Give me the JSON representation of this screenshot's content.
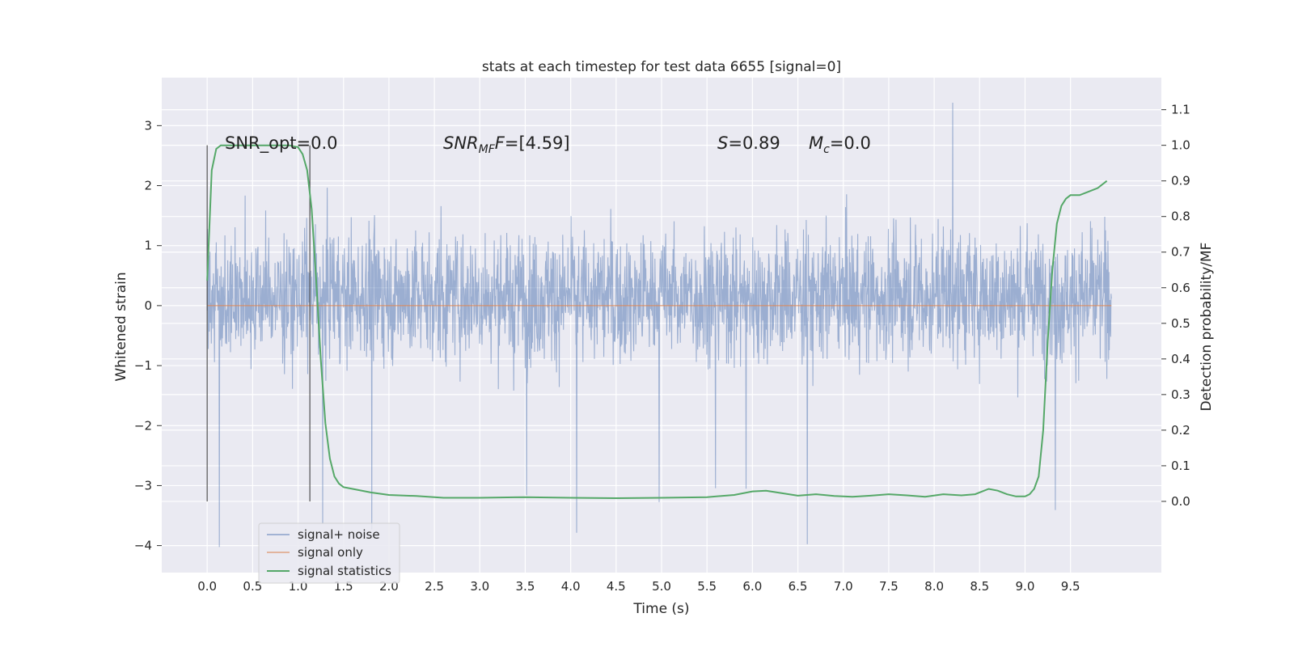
{
  "chart_data": {
    "type": "line",
    "title": "stats at each timestep for test data 6655 [signal=0]",
    "xlabel": "Time (s)",
    "ylabel_left": "Whitened strain",
    "ylabel_right": "Detection probability/MF",
    "x_range": [
      0.0,
      9.95
    ],
    "x_ticks": [
      "0.0",
      "0.5",
      "1.0",
      "1.5",
      "2.0",
      "2.5",
      "3.0",
      "3.5",
      "4.0",
      "4.5",
      "5.0",
      "5.5",
      "6.0",
      "6.5",
      "7.0",
      "7.5",
      "8.0",
      "8.5",
      "9.0",
      "9.5"
    ],
    "xlim": [
      -0.5,
      10.5
    ],
    "ylim_left": [
      -4.45,
      3.8
    ],
    "ylim_right": [
      -0.2,
      1.19
    ],
    "y_ticks_left": [
      "3",
      "2",
      "1",
      "0",
      "−1",
      "−2",
      "−3",
      "−4"
    ],
    "y_ticks_right": [
      "1.1",
      "1.0",
      "0.9",
      "0.8",
      "0.7",
      "0.6",
      "0.5",
      "0.4",
      "0.3",
      "0.2",
      "0.1",
      "0.0"
    ],
    "grid": true,
    "legend_position": "lower-left",
    "background": "#eaeaf2",
    "series": [
      {
        "name": "signal+ noise",
        "color": "#4c72b0",
        "opacity": 0.5,
        "envelope": {
          "typical_band": [
            -1.5,
            1.9
          ],
          "max_peak": 3.45,
          "min_peak": -4.05
        }
      },
      {
        "name": "signal only",
        "color": "#dd8452",
        "values_constant": 0.0
      },
      {
        "name": "signal statistics",
        "color": "#55a868",
        "x": [
          0.0,
          0.05,
          0.1,
          0.15,
          0.2,
          0.3,
          0.5,
          0.7,
          0.9,
          1.0,
          1.05,
          1.1,
          1.15,
          1.2,
          1.25,
          1.3,
          1.35,
          1.4,
          1.45,
          1.5,
          1.6,
          1.8,
          2.0,
          2.3,
          2.6,
          3.0,
          3.5,
          4.0,
          4.5,
          5.0,
          5.5,
          5.8,
          6.0,
          6.15,
          6.3,
          6.5,
          6.7,
          6.9,
          7.1,
          7.3,
          7.5,
          7.7,
          7.9,
          8.1,
          8.3,
          8.45,
          8.6,
          8.7,
          8.8,
          8.9,
          9.0,
          9.05,
          9.1,
          9.15,
          9.2,
          9.25,
          9.3,
          9.35,
          9.4,
          9.45,
          9.5,
          9.6,
          9.7,
          9.8,
          9.9
        ],
        "y": [
          0.62,
          0.93,
          0.99,
          1.0,
          1.0,
          1.0,
          1.0,
          1.0,
          1.0,
          0.995,
          0.975,
          0.93,
          0.82,
          0.62,
          0.4,
          0.22,
          0.12,
          0.07,
          0.05,
          0.04,
          0.035,
          0.025,
          0.018,
          0.015,
          0.01,
          0.01,
          0.012,
          0.01,
          0.009,
          0.01,
          0.012,
          0.018,
          0.028,
          0.03,
          0.024,
          0.016,
          0.02,
          0.015,
          0.013,
          0.016,
          0.02,
          0.017,
          0.013,
          0.02,
          0.017,
          0.02,
          0.035,
          0.03,
          0.02,
          0.014,
          0.014,
          0.02,
          0.035,
          0.07,
          0.2,
          0.45,
          0.65,
          0.78,
          0.83,
          0.85,
          0.86,
          0.86,
          0.87,
          0.88,
          0.9
        ]
      }
    ],
    "vertical_lines_x": [
      0.0,
      1.13
    ],
    "annotations": [
      {
        "text": "SNR_opt=0.0",
        "italic": false
      },
      {
        "text": "SNR",
        "sub": "MF",
        "suffix": "=[4.59]",
        "italic_prefix": "F"
      },
      {
        "text": "S",
        "suffix": "=0.89"
      },
      {
        "text": "M",
        "sub": "c",
        "suffix": "=0.0"
      }
    ]
  }
}
